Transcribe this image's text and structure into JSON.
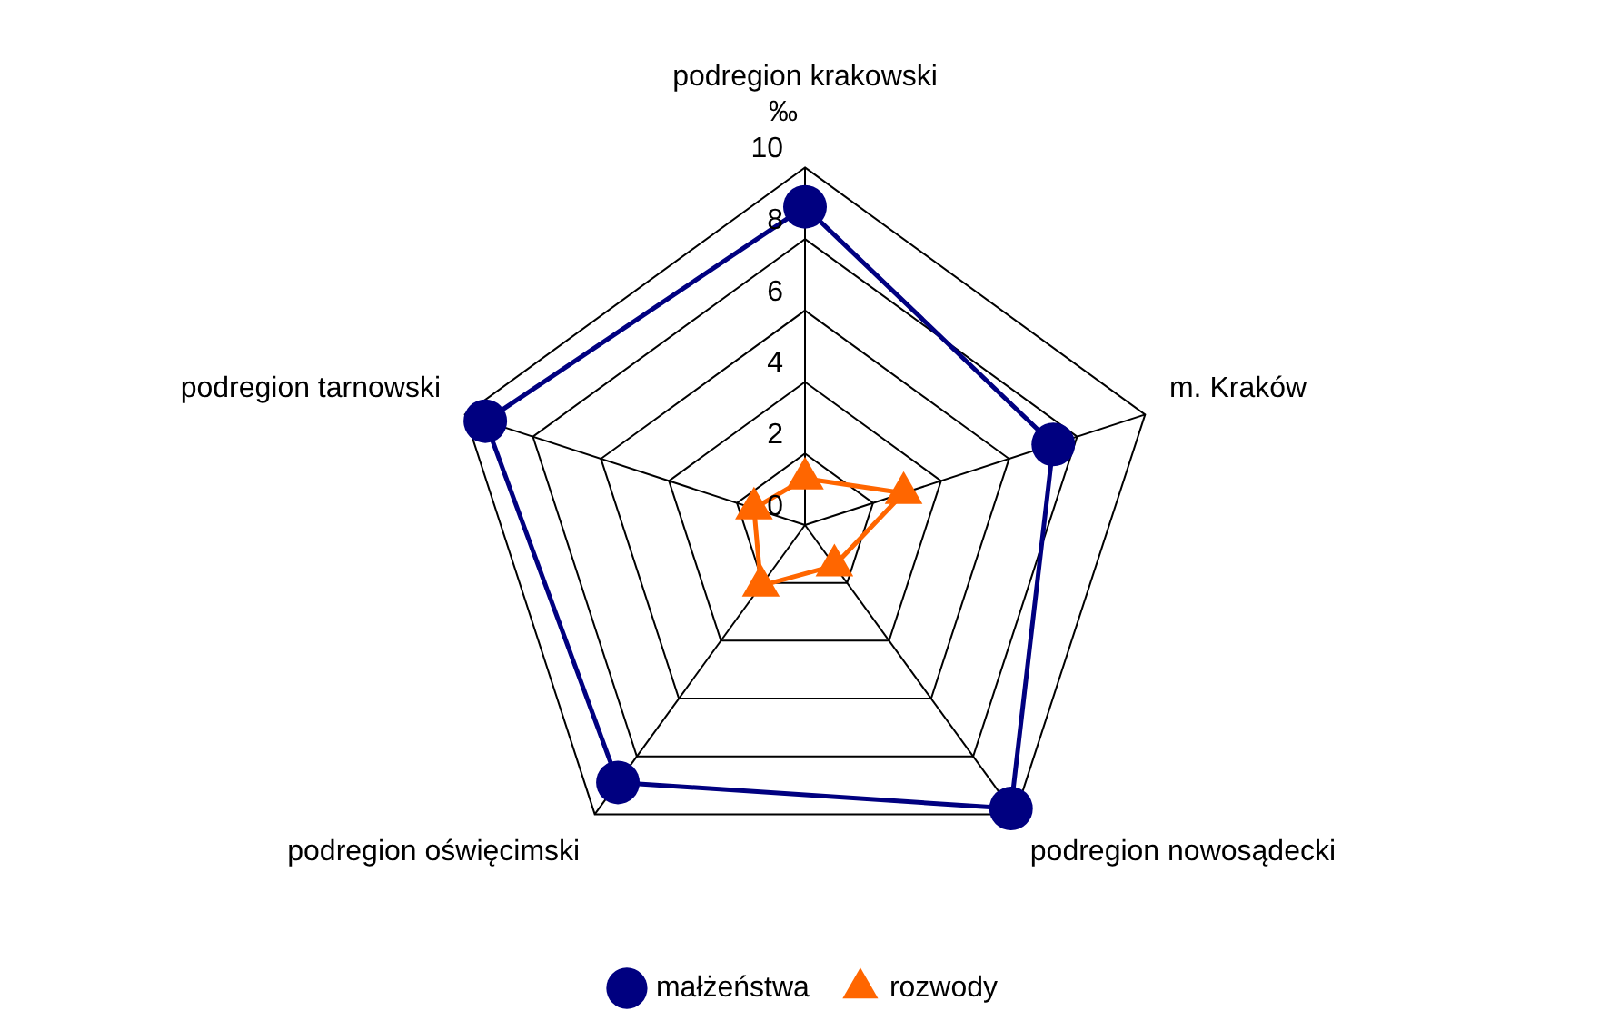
{
  "chart_data": {
    "type": "radar",
    "ylabel": "‰",
    "categories": [
      "podregion krakowski",
      "m. Kraków",
      "podregion nowosądecki",
      "podregion oświęcimski",
      "podregion tarnowski"
    ],
    "series": [
      {
        "name": "małżeństwa",
        "color": "#000080",
        "marker": "circle",
        "values": [
          8.9,
          7.3,
          9.8,
          8.9,
          9.4
        ]
      },
      {
        "name": "rozwody",
        "color": "#ff6600",
        "marker": "triangle",
        "values": [
          1.3,
          2.9,
          1.4,
          2.1,
          1.5
        ]
      }
    ],
    "ylim": [
      0,
      10
    ],
    "yticks": [
      0,
      2,
      4,
      6,
      8,
      10
    ],
    "grid": true,
    "legend": "bottom"
  }
}
